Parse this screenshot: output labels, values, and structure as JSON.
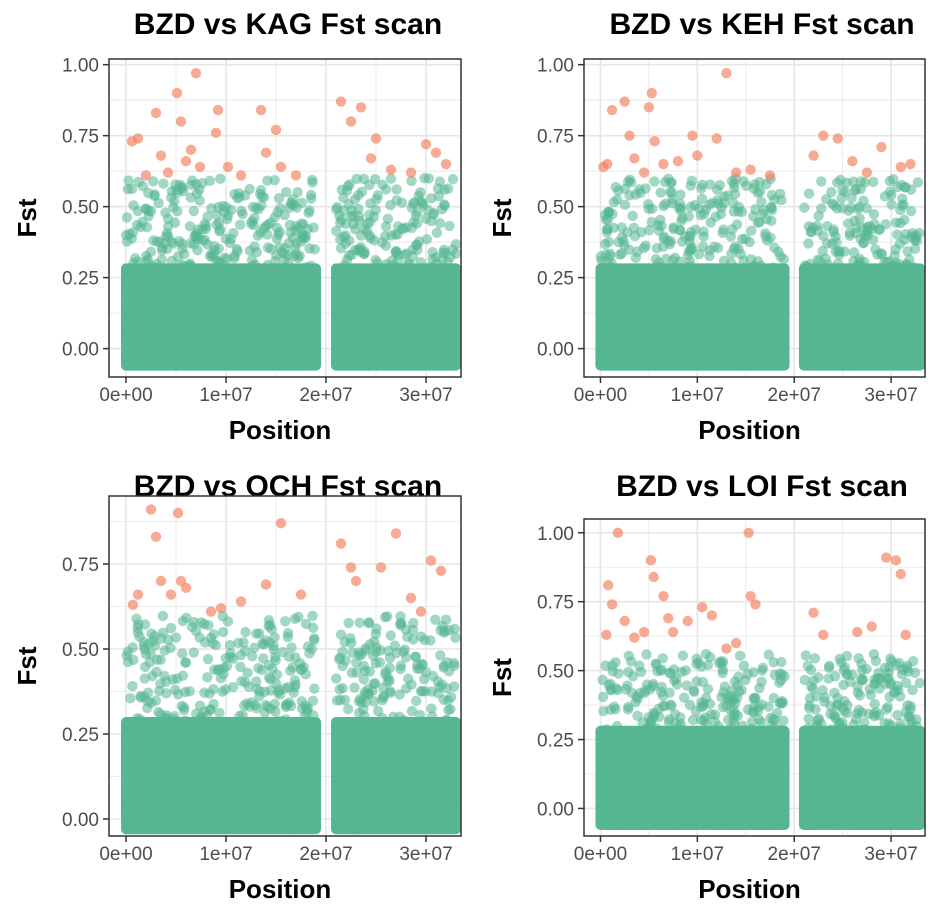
{
  "colors": {
    "background": "#56B791",
    "outlier": "#F47E5B",
    "grid": "#E6E6E6",
    "axis": "#333333"
  },
  "chart_data": [
    {
      "type": "scatter",
      "title": "BZD vs KAG Fst scan",
      "xlabel": "Position",
      "ylabel": "Fst",
      "xlim": [
        -1700000,
        33500000
      ],
      "ylim": [
        -0.1,
        1.02
      ],
      "x_ticks": [
        "0e+00",
        "1e+07",
        "2e+07",
        "3e+07"
      ],
      "y_ticks": [
        "0.00",
        "0.25",
        "0.50",
        "0.75",
        "1.00"
      ],
      "grid": true,
      "legend": "none",
      "series": [
        {
          "values_range": {
            "x_segments": [
              [
                0,
                19000000
              ],
              [
                21000000,
                33000000
              ]
            ],
            "y": [
              -0.06,
              0.6
            ]
          }
        },
        {
          "points": [
            [
              600000,
              0.73
            ],
            [
              1200000,
              0.74
            ],
            [
              2000000,
              0.61
            ],
            [
              3000000,
              0.83
            ],
            [
              3500000,
              0.68
            ],
            [
              4200000,
              0.62
            ],
            [
              5100000,
              0.9
            ],
            [
              5500000,
              0.8
            ],
            [
              6000000,
              0.66
            ],
            [
              6500000,
              0.7
            ],
            [
              7000000,
              0.97
            ],
            [
              7400000,
              0.64
            ],
            [
              9000000,
              0.76
            ],
            [
              9200000,
              0.84
            ],
            [
              10200000,
              0.64
            ],
            [
              11500000,
              0.61
            ],
            [
              13500000,
              0.84
            ],
            [
              14000000,
              0.69
            ],
            [
              15000000,
              0.77
            ],
            [
              15500000,
              0.64
            ],
            [
              17000000,
              0.61
            ],
            [
              21500000,
              0.87
            ],
            [
              22500000,
              0.8
            ],
            [
              23500000,
              0.85
            ],
            [
              24500000,
              0.67
            ],
            [
              25000000,
              0.74
            ],
            [
              26500000,
              0.63
            ],
            [
              28500000,
              0.62
            ],
            [
              30000000,
              0.72
            ],
            [
              31000000,
              0.69
            ],
            [
              32000000,
              0.65
            ]
          ]
        }
      ]
    },
    {
      "type": "scatter",
      "title": "BZD vs KEH Fst scan",
      "xlabel": "Position",
      "ylabel": "Fst",
      "xlim": [
        -1700000,
        33500000
      ],
      "ylim": [
        -0.1,
        1.02
      ],
      "x_ticks": [
        "0e+00",
        "1e+07",
        "2e+07",
        "3e+07"
      ],
      "y_ticks": [
        "0.00",
        "0.25",
        "0.50",
        "0.75",
        "1.00"
      ],
      "grid": true,
      "legend": "none",
      "series": [
        {
          "values_range": {
            "x_segments": [
              [
                0,
                19000000
              ],
              [
                21000000,
                33000000
              ]
            ],
            "y": [
              -0.06,
              0.6
            ]
          }
        },
        {
          "points": [
            [
              300000,
              0.64
            ],
            [
              700000,
              0.65
            ],
            [
              1200000,
              0.84
            ],
            [
              2500000,
              0.87
            ],
            [
              3000000,
              0.75
            ],
            [
              3500000,
              0.67
            ],
            [
              4500000,
              0.62
            ],
            [
              5000000,
              0.85
            ],
            [
              5300000,
              0.9
            ],
            [
              5600000,
              0.73
            ],
            [
              6500000,
              0.65
            ],
            [
              8000000,
              0.66
            ],
            [
              9500000,
              0.75
            ],
            [
              10000000,
              0.68
            ],
            [
              12000000,
              0.74
            ],
            [
              13000000,
              0.97
            ],
            [
              14000000,
              0.62
            ],
            [
              15500000,
              0.63
            ],
            [
              17500000,
              0.61
            ],
            [
              22000000,
              0.68
            ],
            [
              23000000,
              0.75
            ],
            [
              24500000,
              0.74
            ],
            [
              26000000,
              0.66
            ],
            [
              27500000,
              0.62
            ],
            [
              29000000,
              0.71
            ],
            [
              31000000,
              0.64
            ],
            [
              32000000,
              0.65
            ]
          ]
        }
      ]
    },
    {
      "type": "scatter",
      "title": "BZD vs OCH Fst scan",
      "xlabel": "Position",
      "ylabel": "Fst",
      "xlim": [
        -1700000,
        33500000
      ],
      "ylim": [
        -0.05,
        0.95
      ],
      "x_ticks": [
        "0e+00",
        "1e+07",
        "2e+07",
        "3e+07"
      ],
      "y_ticks": [
        "0.00",
        "0.25",
        "0.50",
        "0.75"
      ],
      "grid": true,
      "legend": "none",
      "series": [
        {
          "values_range": {
            "x_segments": [
              [
                0,
                19000000
              ],
              [
                21000000,
                33000000
              ]
            ],
            "y": [
              -0.03,
              0.6
            ]
          }
        },
        {
          "points": [
            [
              700000,
              0.63
            ],
            [
              1200000,
              0.66
            ],
            [
              2500000,
              0.91
            ],
            [
              3000000,
              0.83
            ],
            [
              3500000,
              0.7
            ],
            [
              4500000,
              0.66
            ],
            [
              5200000,
              0.9
            ],
            [
              5500000,
              0.7
            ],
            [
              6000000,
              0.68
            ],
            [
              8500000,
              0.61
            ],
            [
              9500000,
              0.62
            ],
            [
              11500000,
              0.64
            ],
            [
              14000000,
              0.69
            ],
            [
              15500000,
              0.87
            ],
            [
              17500000,
              0.66
            ],
            [
              21500000,
              0.81
            ],
            [
              22500000,
              0.74
            ],
            [
              23000000,
              0.7
            ],
            [
              25500000,
              0.74
            ],
            [
              27000000,
              0.84
            ],
            [
              28500000,
              0.65
            ],
            [
              29500000,
              0.61
            ],
            [
              30500000,
              0.76
            ],
            [
              31500000,
              0.73
            ]
          ]
        }
      ]
    },
    {
      "type": "scatter",
      "title": "BZD vs LOI Fst scan",
      "xlabel": "Position",
      "ylabel": "Fst",
      "xlim": [
        -1700000,
        33500000
      ],
      "ylim": [
        -0.1,
        1.05
      ],
      "x_ticks": [
        "0e+00",
        "1e+07",
        "2e+07",
        "3e+07"
      ],
      "y_ticks": [
        "0.00",
        "0.25",
        "0.50",
        "0.75",
        "1.00"
      ],
      "grid": true,
      "legend": "none",
      "series": [
        {
          "values_range": {
            "x_segments": [
              [
                0,
                19000000
              ],
              [
                21000000,
                33000000
              ]
            ],
            "y": [
              -0.06,
              0.56
            ]
          }
        },
        {
          "points": [
            [
              600000,
              0.63
            ],
            [
              800000,
              0.81
            ],
            [
              1200000,
              0.74
            ],
            [
              1800000,
              1.0
            ],
            [
              2500000,
              0.68
            ],
            [
              3500000,
              0.62
            ],
            [
              4500000,
              0.64
            ],
            [
              5200000,
              0.9
            ],
            [
              5500000,
              0.84
            ],
            [
              6500000,
              0.77
            ],
            [
              7000000,
              0.69
            ],
            [
              7500000,
              0.64
            ],
            [
              9000000,
              0.68
            ],
            [
              10500000,
              0.73
            ],
            [
              11500000,
              0.7
            ],
            [
              13000000,
              0.58
            ],
            [
              14000000,
              0.6
            ],
            [
              15300000,
              1.0
            ],
            [
              15500000,
              0.77
            ],
            [
              16000000,
              0.74
            ],
            [
              22000000,
              0.71
            ],
            [
              23000000,
              0.63
            ],
            [
              26500000,
              0.64
            ],
            [
              28000000,
              0.66
            ],
            [
              29500000,
              0.91
            ],
            [
              30500000,
              0.9
            ],
            [
              31000000,
              0.85
            ],
            [
              31500000,
              0.63
            ]
          ]
        }
      ]
    }
  ]
}
